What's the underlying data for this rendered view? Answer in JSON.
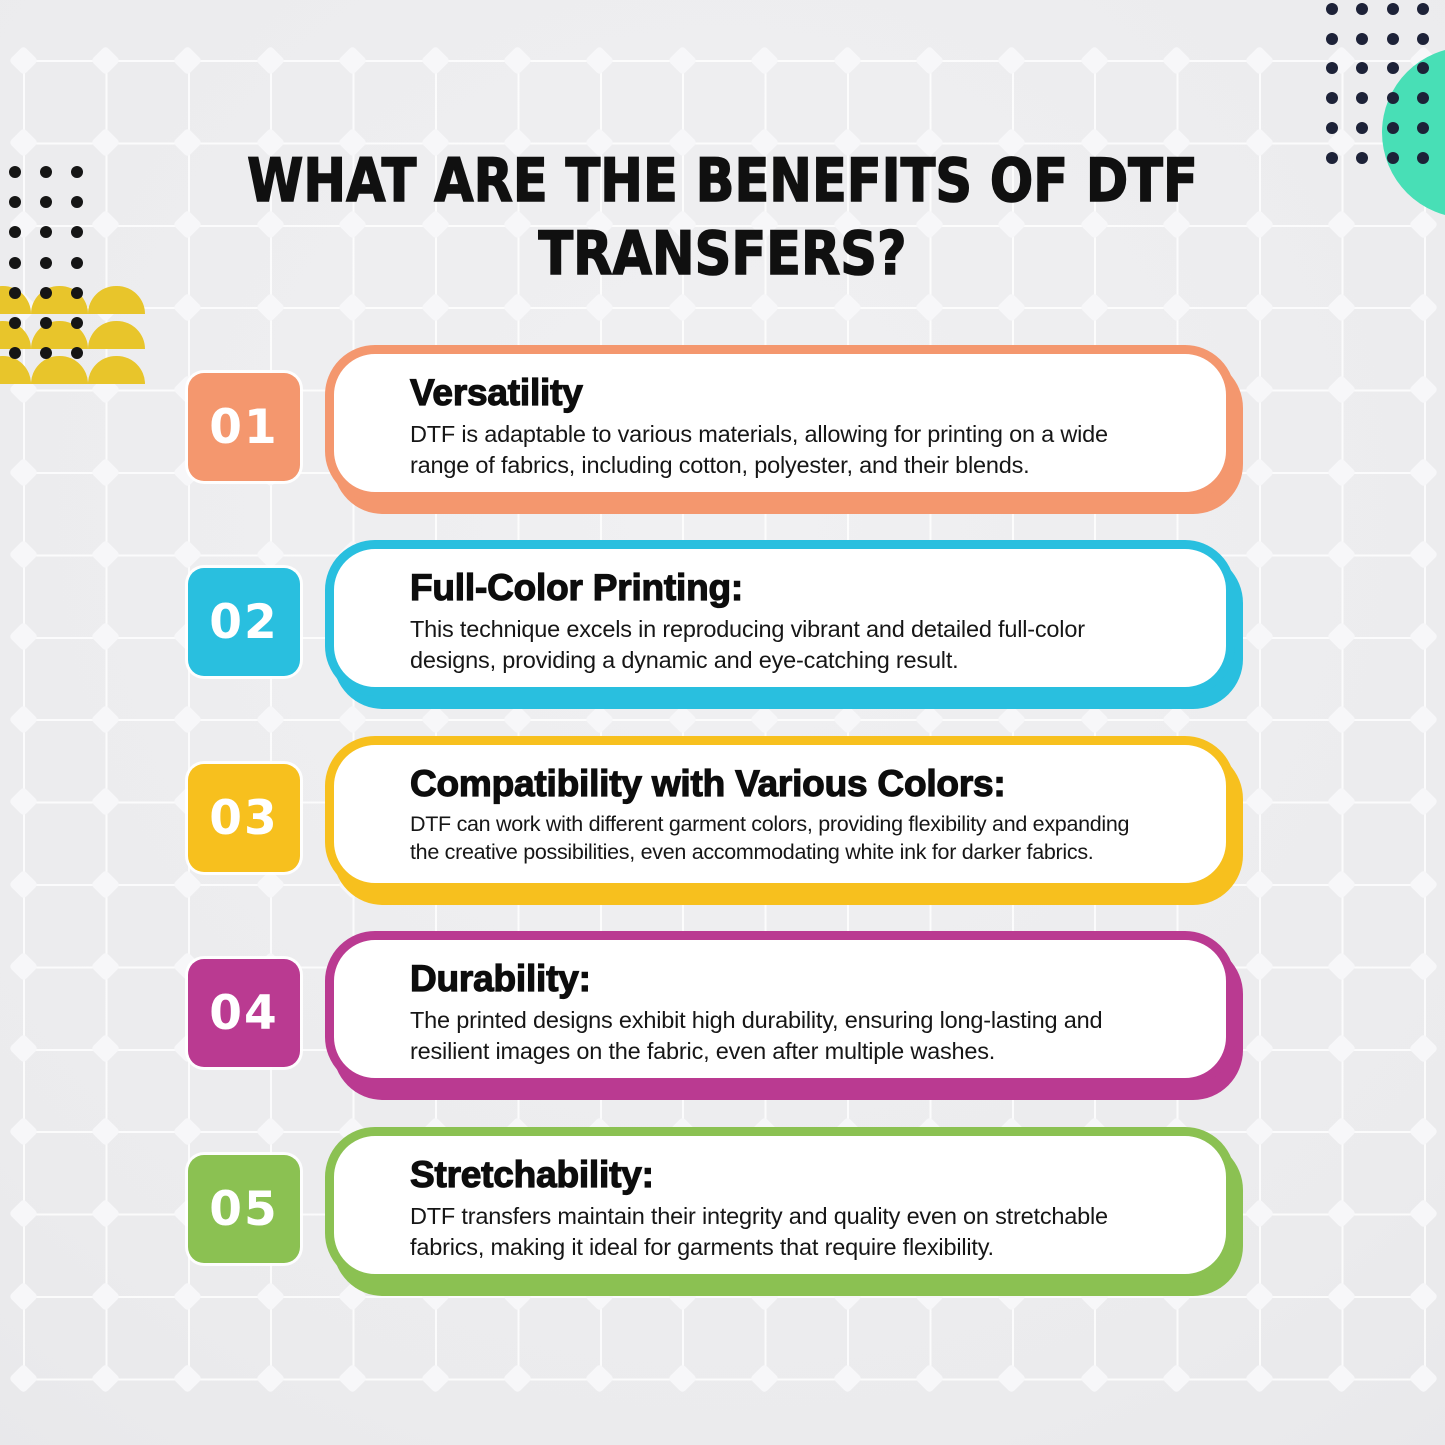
{
  "title": {
    "line1": "WHAT ARE THE BENEFITS OF DTF",
    "line2": "TRANSFERS?"
  },
  "items": [
    {
      "number": "01",
      "heading": "Versatility",
      "body": "DTF is adaptable to various materials, allowing for printing on a wide\nrange of fabrics, including cotton, polyester, and their blends.",
      "color": "#F4976E"
    },
    {
      "number": "02",
      "heading": "Full-Color Printing:",
      "body": "This technique excels in reproducing vibrant and detailed full-color\ndesigns, providing a dynamic and eye-catching result.",
      "color": "#29BFDF"
    },
    {
      "number": "03",
      "heading": "Compatibility with Various Colors:",
      "body": "DTF can work with different garment colors, providing flexibility and expanding\nthe creative possibilities, even accommodating white ink for darker fabrics.",
      "color": "#F7C01E"
    },
    {
      "number": "04",
      "heading": "Durability:",
      "body": "The printed designs exhibit high durability, ensuring long-lasting and\nresilient images on the fabric, even after multiple washes.",
      "color": "#BA3A91"
    },
    {
      "number": "05",
      "heading": "Stretchability:",
      "body": "DTF transfers maintain their integrity and quality even on stretchable\nfabrics, making it ideal for garments that require flexibility.",
      "color": "#8BC152"
    }
  ],
  "decor": {
    "circle_color": "#48DFB6",
    "dots_right_color": "#1D2238",
    "dots_left_color": "#151515",
    "domes_color": "#E8C52B"
  }
}
